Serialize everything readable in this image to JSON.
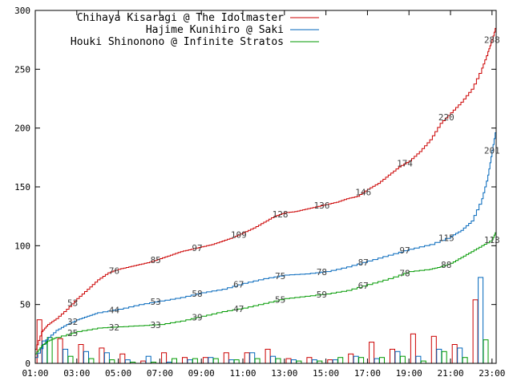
{
  "chart_data": {
    "type": "line",
    "x_tick_labels": [
      "01:00",
      "03:00",
      "05:00",
      "07:00",
      "09:00",
      "11:00",
      "13:00",
      "15:00",
      "17:00",
      "19:00",
      "21:00",
      "23:00"
    ],
    "y_tick_labels": [
      "0",
      "50",
      "100",
      "150",
      "200",
      "250",
      "300"
    ],
    "xlim": [
      1,
      23.2
    ],
    "ylim": [
      0,
      300
    ],
    "grid": false,
    "legend_position": "top-left",
    "series": [
      {
        "name": "Chihaya Kisaragi @ The Idolmaster",
        "color": "#cc0000",
        "cumulative": [
          [
            1.0,
            12
          ],
          [
            1.3,
            27
          ],
          [
            1.6,
            33
          ],
          [
            2.0,
            38
          ],
          [
            2.5,
            46
          ],
          [
            3.0,
            55
          ],
          [
            3.5,
            63
          ],
          [
            4.0,
            71
          ],
          [
            4.5,
            77
          ],
          [
            5.0,
            80
          ],
          [
            5.5,
            82
          ],
          [
            6.0,
            84
          ],
          [
            6.5,
            86
          ],
          [
            7.0,
            89
          ],
          [
            7.5,
            92
          ],
          [
            8.0,
            95
          ],
          [
            8.5,
            97
          ],
          [
            9.0,
            99
          ],
          [
            9.5,
            101
          ],
          [
            10.0,
            104
          ],
          [
            10.5,
            107
          ],
          [
            11.0,
            111
          ],
          [
            11.5,
            115
          ],
          [
            12.0,
            120
          ],
          [
            12.5,
            125
          ],
          [
            13.0,
            128
          ],
          [
            13.5,
            129
          ],
          [
            14.0,
            131
          ],
          [
            14.5,
            133
          ],
          [
            15.0,
            135
          ],
          [
            15.5,
            137
          ],
          [
            16.0,
            140
          ],
          [
            16.5,
            142
          ],
          [
            17.0,
            148
          ],
          [
            17.5,
            153
          ],
          [
            18.0,
            160
          ],
          [
            18.5,
            167
          ],
          [
            19.0,
            172
          ],
          [
            19.5,
            180
          ],
          [
            20.0,
            190
          ],
          [
            20.5,
            204
          ],
          [
            21.0,
            213
          ],
          [
            21.5,
            222
          ],
          [
            22.0,
            233
          ],
          [
            22.5,
            251
          ],
          [
            22.8,
            265
          ],
          [
            23.0,
            275
          ],
          [
            23.2,
            288
          ]
        ],
        "labels": [
          [
            2.8,
            "53"
          ],
          [
            4.8,
            "76"
          ],
          [
            6.8,
            "85"
          ],
          [
            8.8,
            "97"
          ],
          [
            10.8,
            "109"
          ],
          [
            12.8,
            "128"
          ],
          [
            14.8,
            "136"
          ],
          [
            16.8,
            "146"
          ],
          [
            18.8,
            "174"
          ],
          [
            20.8,
            "220"
          ],
          [
            23.0,
            "288"
          ]
        ],
        "hourly": [
          [
            1.2,
            37
          ],
          [
            2.2,
            21
          ],
          [
            3.2,
            16
          ],
          [
            4.2,
            13
          ],
          [
            5.2,
            8
          ],
          [
            6.2,
            2
          ],
          [
            7.2,
            9
          ],
          [
            8.2,
            5
          ],
          [
            9.2,
            5
          ],
          [
            10.2,
            9
          ],
          [
            11.2,
            9
          ],
          [
            12.2,
            12
          ],
          [
            13.2,
            4
          ],
          [
            14.2,
            5
          ],
          [
            15.2,
            3
          ],
          [
            16.2,
            8
          ],
          [
            17.2,
            18
          ],
          [
            18.2,
            12
          ],
          [
            19.2,
            25
          ],
          [
            20.2,
            23
          ],
          [
            21.2,
            16
          ],
          [
            22.2,
            54
          ]
        ]
      },
      {
        "name": "Hajime Kunihiro @ Saki",
        "color": "#0066bb",
        "cumulative": [
          [
            1.0,
            5
          ],
          [
            1.5,
            20
          ],
          [
            2.0,
            28
          ],
          [
            2.5,
            33
          ],
          [
            3.0,
            37
          ],
          [
            3.5,
            40
          ],
          [
            4.0,
            43
          ],
          [
            5.0,
            46
          ],
          [
            6.0,
            50
          ],
          [
            7.0,
            53
          ],
          [
            8.0,
            56
          ],
          [
            9.0,
            60
          ],
          [
            10.0,
            63
          ],
          [
            11.0,
            68
          ],
          [
            12.0,
            72
          ],
          [
            13.0,
            75
          ],
          [
            14.0,
            76
          ],
          [
            15.0,
            78
          ],
          [
            16.0,
            82
          ],
          [
            17.0,
            87
          ],
          [
            18.0,
            92
          ],
          [
            19.0,
            97
          ],
          [
            20.0,
            101
          ],
          [
            21.0,
            108
          ],
          [
            21.5,
            113
          ],
          [
            22.0,
            121
          ],
          [
            22.5,
            140
          ],
          [
            22.8,
            160
          ],
          [
            23.0,
            181
          ],
          [
            23.2,
            201
          ]
        ],
        "labels": [
          [
            2.8,
            "32"
          ],
          [
            4.8,
            "44"
          ],
          [
            6.8,
            "53"
          ],
          [
            8.8,
            "58"
          ],
          [
            10.8,
            "67"
          ],
          [
            12.8,
            "75"
          ],
          [
            14.8,
            "78"
          ],
          [
            16.8,
            "87"
          ],
          [
            18.8,
            "97"
          ],
          [
            20.8,
            "115"
          ],
          [
            23.0,
            "201"
          ]
        ],
        "hourly": [
          [
            1.45,
            19
          ],
          [
            2.45,
            12
          ],
          [
            3.45,
            10
          ],
          [
            4.45,
            9
          ],
          [
            5.45,
            3
          ],
          [
            6.45,
            6
          ],
          [
            7.45,
            1
          ],
          [
            8.45,
            3
          ],
          [
            9.45,
            5
          ],
          [
            10.45,
            3
          ],
          [
            11.45,
            9
          ],
          [
            12.45,
            6
          ],
          [
            13.45,
            3
          ],
          [
            14.45,
            3
          ],
          [
            15.45,
            3
          ],
          [
            16.45,
            6
          ],
          [
            17.45,
            4
          ],
          [
            18.45,
            10
          ],
          [
            19.45,
            6
          ],
          [
            20.45,
            12
          ],
          [
            21.45,
            13
          ],
          [
            22.45,
            73
          ]
        ]
      },
      {
        "name": "Houki Shinonono @ Infinite Stratos",
        "color": "#009900",
        "cumulative": [
          [
            1.0,
            8
          ],
          [
            1.3,
            15
          ],
          [
            1.6,
            19
          ],
          [
            2.0,
            22
          ],
          [
            3.0,
            27
          ],
          [
            4.0,
            30
          ],
          [
            5.0,
            31
          ],
          [
            6.0,
            32
          ],
          [
            7.0,
            33
          ],
          [
            8.0,
            36
          ],
          [
            9.0,
            40
          ],
          [
            10.0,
            44
          ],
          [
            11.0,
            47
          ],
          [
            12.0,
            51
          ],
          [
            13.0,
            55
          ],
          [
            14.0,
            57
          ],
          [
            15.0,
            59
          ],
          [
            16.0,
            62
          ],
          [
            17.0,
            67
          ],
          [
            18.0,
            72
          ],
          [
            19.0,
            78
          ],
          [
            20.0,
            80
          ],
          [
            20.5,
            82
          ],
          [
            21.0,
            85
          ],
          [
            21.5,
            90
          ],
          [
            22.0,
            95
          ],
          [
            22.5,
            100
          ],
          [
            23.0,
            105
          ],
          [
            23.2,
            113
          ]
        ],
        "labels": [
          [
            2.8,
            "25"
          ],
          [
            4.8,
            "32"
          ],
          [
            6.8,
            "33"
          ],
          [
            8.8,
            "39"
          ],
          [
            10.8,
            "47"
          ],
          [
            12.8,
            "55"
          ],
          [
            14.8,
            "59"
          ],
          [
            16.8,
            "67"
          ],
          [
            18.8,
            "78"
          ],
          [
            20.8,
            "88"
          ],
          [
            23.0,
            "113"
          ]
        ],
        "hourly": [
          [
            1.7,
            22
          ],
          [
            2.7,
            6
          ],
          [
            3.7,
            4
          ],
          [
            4.7,
            3
          ],
          [
            5.7,
            1
          ],
          [
            6.7,
            1
          ],
          [
            7.7,
            4
          ],
          [
            8.7,
            4
          ],
          [
            9.7,
            4
          ],
          [
            10.7,
            3
          ],
          [
            11.7,
            4
          ],
          [
            12.7,
            4
          ],
          [
            13.7,
            2
          ],
          [
            14.7,
            2
          ],
          [
            15.7,
            5
          ],
          [
            16.7,
            5
          ],
          [
            17.7,
            5
          ],
          [
            18.7,
            6
          ],
          [
            19.7,
            2
          ],
          [
            20.7,
            10
          ],
          [
            21.7,
            5
          ],
          [
            22.7,
            20
          ]
        ]
      }
    ]
  }
}
